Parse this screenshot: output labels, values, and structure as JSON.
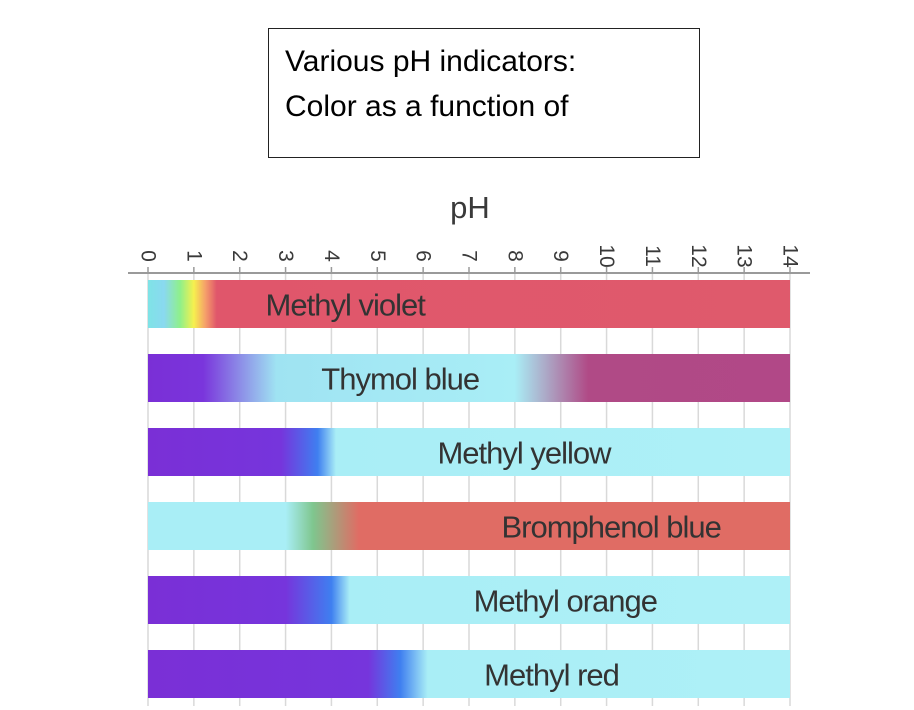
{
  "caption": {
    "line1": "Various pH indicators:",
    "line2": "Color as a function of"
  },
  "chart_data": {
    "type": "bar",
    "orientation": "horizontal",
    "title": "",
    "xlabel": "pH",
    "ylabel": "",
    "xlim": [
      0,
      14
    ],
    "xticks": [
      "0",
      "1",
      "2",
      "3",
      "4",
      "5",
      "6",
      "7",
      "8",
      "9",
      "10",
      "11",
      "12",
      "13",
      "14"
    ],
    "tick_label_orientation": "rotated",
    "grid": true,
    "legend": "none",
    "indicators": [
      {
        "name": "Methyl violet",
        "color_stops": [
          {
            "ph": 0.0,
            "color": "#7fe3e6"
          },
          {
            "ph": 0.35,
            "color": "#8ad9f0"
          },
          {
            "ph": 0.7,
            "color": "#8ff08a"
          },
          {
            "ph": 1.0,
            "color": "#f6f04e"
          },
          {
            "ph": 1.25,
            "color": "#f5a06a"
          },
          {
            "ph": 1.5,
            "color": "#e0566b"
          },
          {
            "ph": 14.0,
            "color": "#df5a6c"
          }
        ]
      },
      {
        "name": "Thymol blue",
        "color_stops": [
          {
            "ph": 0.0,
            "color": "#7a2fd6"
          },
          {
            "ph": 1.2,
            "color": "#7a35dc"
          },
          {
            "ph": 2.8,
            "color": "#9fe3f2"
          },
          {
            "ph": 8.0,
            "color": "#a9eef6"
          },
          {
            "ph": 9.6,
            "color": "#b04a86"
          },
          {
            "ph": 14.0,
            "color": "#b14887"
          }
        ]
      },
      {
        "name": "Methyl yellow",
        "color_stops": [
          {
            "ph": 0.0,
            "color": "#7a2fd6"
          },
          {
            "ph": 2.9,
            "color": "#7635dc"
          },
          {
            "ph": 3.7,
            "color": "#3f7ff0"
          },
          {
            "ph": 4.1,
            "color": "#a9eef6"
          },
          {
            "ph": 14.0,
            "color": "#aef0f7"
          }
        ]
      },
      {
        "name": "Bromphenol blue",
        "color_stops": [
          {
            "ph": 0.0,
            "color": "#a9eef6"
          },
          {
            "ph": 3.0,
            "color": "#a9eef6"
          },
          {
            "ph": 3.6,
            "color": "#7fc68e"
          },
          {
            "ph": 4.6,
            "color": "#e06c64"
          },
          {
            "ph": 14.0,
            "color": "#e06c64"
          }
        ]
      },
      {
        "name": "Methyl orange",
        "color_stops": [
          {
            "ph": 0.0,
            "color": "#7a2fd6"
          },
          {
            "ph": 3.0,
            "color": "#7635dc"
          },
          {
            "ph": 4.0,
            "color": "#3f7ff0"
          },
          {
            "ph": 4.4,
            "color": "#a9eef6"
          },
          {
            "ph": 14.0,
            "color": "#aef0f7"
          }
        ]
      },
      {
        "name": "Methyl red",
        "color_stops": [
          {
            "ph": 0.0,
            "color": "#7a2fd6"
          },
          {
            "ph": 4.8,
            "color": "#7635dc"
          },
          {
            "ph": 5.5,
            "color": "#3f7ff0"
          },
          {
            "ph": 6.1,
            "color": "#a9eef6"
          },
          {
            "ph": 14.0,
            "color": "#aef0f7"
          }
        ]
      }
    ]
  }
}
